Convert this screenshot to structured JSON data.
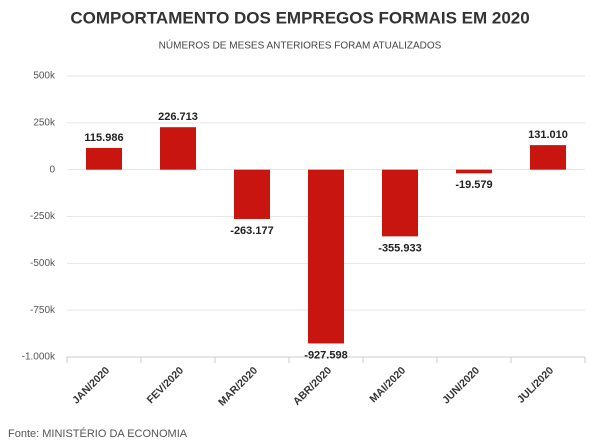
{
  "chart_data": {
    "type": "bar",
    "title": "COMPORTAMENTO DOS EMPREGOS FORMAIS EM 2020",
    "subtitle": "NÚMEROS DE MESES ANTERIORES FORAM ATUALIZADOS",
    "source": "Fonte: MINISTÉRIO DA ECONOMIA",
    "categories": [
      "JAN/2020",
      "FEV/2020",
      "MAR/2020",
      "ABR/2020",
      "MAI/2020",
      "JUN/2020",
      "JUL/2020"
    ],
    "values": [
      115986,
      226713,
      -263177,
      -927598,
      -355933,
      -19579,
      131010
    ],
    "value_labels": [
      "115.986",
      "226.713",
      "-263.177",
      "-927.598",
      "-355.933",
      "-19.579",
      "131.010"
    ],
    "color": "#c8150f",
    "ylim": [
      -1000000,
      500000
    ],
    "yticks": [
      {
        "value": -1000000,
        "label": "-1.000k"
      },
      {
        "value": -750000,
        "label": "-750k"
      },
      {
        "value": -500000,
        "label": "-500k"
      },
      {
        "value": -250000,
        "label": "-250k"
      },
      0,
      {
        "value": 250000,
        "label": "250k"
      },
      {
        "value": 500000,
        "label": "500k"
      }
    ],
    "grid": true
  }
}
